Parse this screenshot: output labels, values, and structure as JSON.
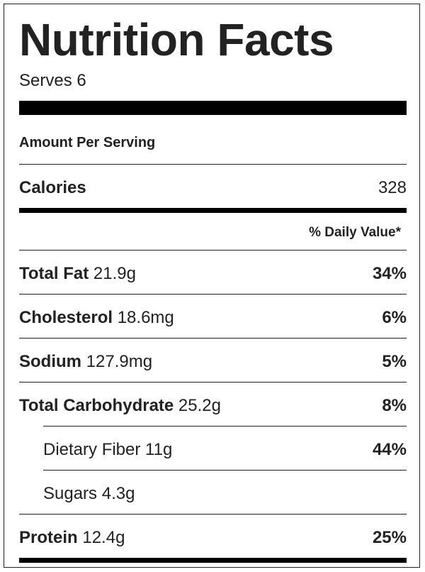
{
  "title": "Nutrition Facts",
  "serves": "Serves 6",
  "amount_per_serving": "Amount Per Serving",
  "calories": {
    "label": "Calories",
    "value": "328"
  },
  "daily_value_header": "% Daily Value*",
  "nutrients": [
    {
      "name": "Total Fat",
      "amount": "21.9g",
      "dv": "34%"
    },
    {
      "name": "Cholesterol",
      "amount": "18.6mg",
      "dv": "6%"
    },
    {
      "name": "Sodium",
      "amount": "127.9mg",
      "dv": "5%"
    },
    {
      "name": "Total Carbohydrate",
      "amount": "25.2g",
      "dv": "8%"
    },
    {
      "name": "Dietary Fiber",
      "amount": "11g",
      "dv": "44%"
    },
    {
      "name": "Sugars",
      "amount": "4.3g",
      "dv": ""
    },
    {
      "name": "Protein",
      "amount": "12.4g",
      "dv": "25%"
    }
  ]
}
